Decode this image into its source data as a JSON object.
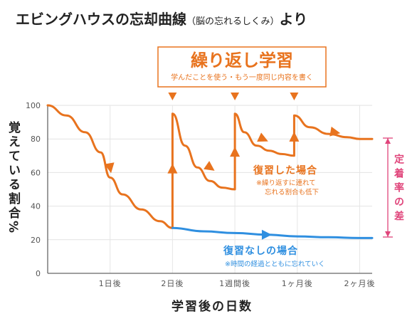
{
  "chart_data": {
    "type": "line",
    "title": "エビングハウスの忘却曲線",
    "subtitle": "（脳の忘れるしくみ）",
    "title_suffix": "より",
    "ylabel": "覚えている割合%",
    "xlabel": "学習後の日数",
    "ylim": [
      0,
      100
    ],
    "yticks": [
      0,
      20,
      40,
      60,
      80,
      100
    ],
    "xticks": [
      {
        "label": "1日後",
        "x": 1
      },
      {
        "label": "2日後",
        "x": 2
      },
      {
        "label": "1週間後",
        "x": 3
      },
      {
        "label": "1ヶ月後",
        "x": 4
      },
      {
        "label": "2ヶ月後",
        "x": 5
      }
    ],
    "grid": true,
    "series": [
      {
        "name": "復習した場合",
        "color": "#e8731e",
        "points": [
          [
            0,
            100
          ],
          [
            0.3,
            94
          ],
          [
            0.6,
            84
          ],
          [
            0.85,
            72
          ],
          [
            1.0,
            57
          ],
          [
            1.2,
            47
          ],
          [
            1.5,
            38
          ],
          [
            1.8,
            31
          ],
          [
            2.0,
            27
          ],
          [
            2.0,
            95
          ],
          [
            2.2,
            76
          ],
          [
            2.4,
            63
          ],
          [
            2.6,
            55
          ],
          [
            2.8,
            51
          ],
          [
            3.0,
            50
          ],
          [
            3.0,
            95
          ],
          [
            3.15,
            84
          ],
          [
            3.35,
            76
          ],
          [
            3.55,
            73
          ],
          [
            3.75,
            71
          ],
          [
            3.95,
            70
          ],
          [
            3.95,
            94
          ],
          [
            4.2,
            87
          ],
          [
            4.5,
            83
          ],
          [
            4.8,
            81
          ],
          [
            5.0,
            80
          ],
          [
            5.2,
            80
          ]
        ]
      },
      {
        "name": "復習なしの場合",
        "color": "#2f8fe0",
        "points": [
          [
            2.0,
            27
          ],
          [
            2.5,
            25
          ],
          [
            3.0,
            24
          ],
          [
            3.5,
            23
          ],
          [
            4.0,
            22
          ],
          [
            4.5,
            21.5
          ],
          [
            5.0,
            21
          ],
          [
            5.2,
            21
          ]
        ]
      }
    ],
    "review_markers": [
      2.0,
      3.0,
      3.95
    ],
    "annotations": {
      "review_box_title": "繰り返し学習",
      "review_box_subtitle": "学んだことを使う・もう一度同じ内容を書く",
      "with_review_title": "復習した場合",
      "with_review_note_1": "※繰り返すに連れて",
      "with_review_note_2": "忘れる割合も低下",
      "without_review_title": "復習なしの場合",
      "without_review_note": "※時間の経過とともに忘れていく",
      "diff_label": "定着率の差"
    }
  }
}
